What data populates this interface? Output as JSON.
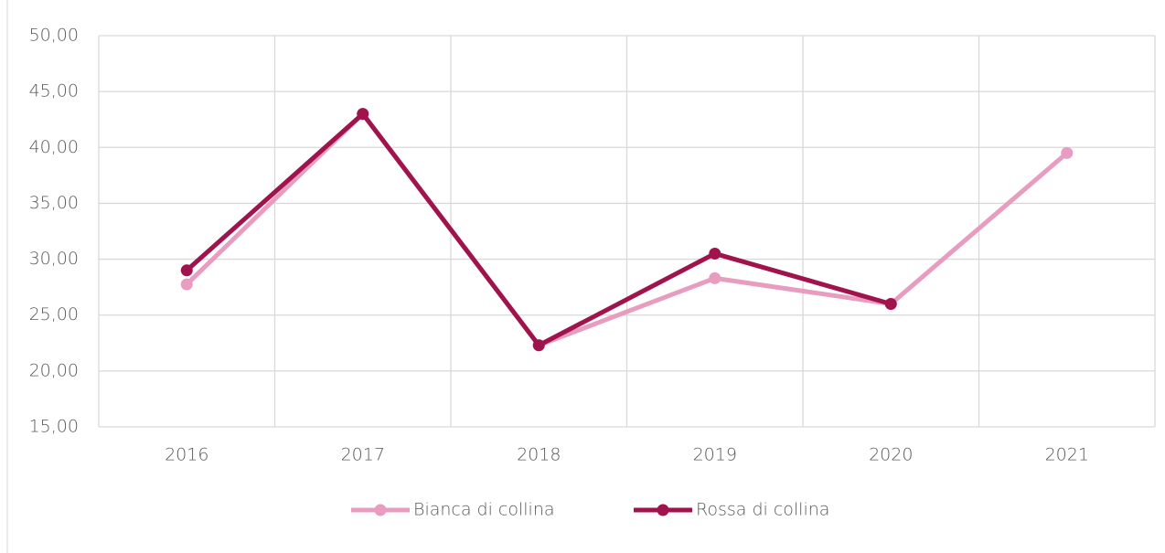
{
  "chart_data": {
    "type": "line",
    "categories": [
      "2016",
      "2017",
      "2018",
      "2019",
      "2020",
      "2021"
    ],
    "series": [
      {
        "name": "Bianca di collina",
        "color": "#e89cbf",
        "values": [
          27.75,
          43.0,
          22.3,
          28.3,
          26.0,
          39.5
        ]
      },
      {
        "name": "Rossa di collina",
        "color": "#a0134d",
        "values": [
          29.0,
          43.0,
          22.3,
          30.5,
          26.0,
          null
        ]
      }
    ],
    "ylim": [
      15,
      50
    ],
    "yticks": [
      {
        "value": 15,
        "label": "15,00"
      },
      {
        "value": 20,
        "label": "20,00"
      },
      {
        "value": 25,
        "label": "25,00"
      },
      {
        "value": 30,
        "label": "30,00"
      },
      {
        "value": 35,
        "label": "35,00"
      },
      {
        "value": 40,
        "label": "40,00"
      },
      {
        "value": 45,
        "label": "45,00"
      },
      {
        "value": 50,
        "label": "50,00"
      }
    ],
    "grid": true,
    "legend": "bottom"
  }
}
